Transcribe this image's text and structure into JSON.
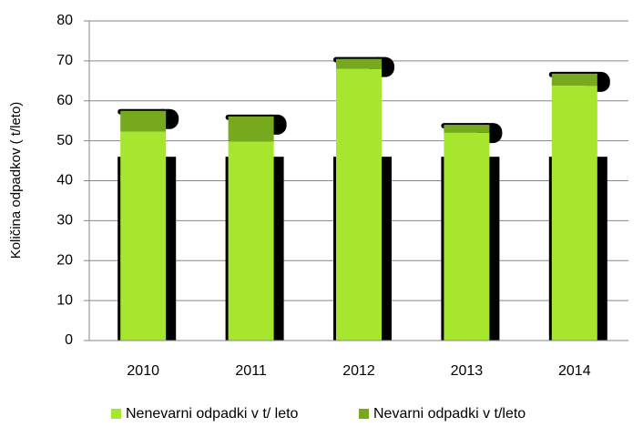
{
  "chart_data": {
    "type": "stacked_bar",
    "y_label": "Količina  odpadkov ( t/leto)",
    "categories": [
      "2010",
      "2011",
      "2012",
      "2013",
      "2014"
    ],
    "series": [
      {
        "name": "Nenevarni odpadki v t/ leto",
        "color": "#a6e62e",
        "values": [
          52.3,
          49.8,
          68,
          52,
          63.8
        ]
      },
      {
        "name": "Nevarni odpadki v t/leto",
        "color": "#77a91e",
        "values": [
          5.2,
          6.3,
          2.5,
          2,
          3
        ]
      }
    ],
    "ylim": [
      0,
      80
    ],
    "yticks": [
      0,
      10,
      20,
      30,
      40,
      50,
      60,
      70,
      80
    ],
    "grid": true,
    "legend": "bottom"
  }
}
